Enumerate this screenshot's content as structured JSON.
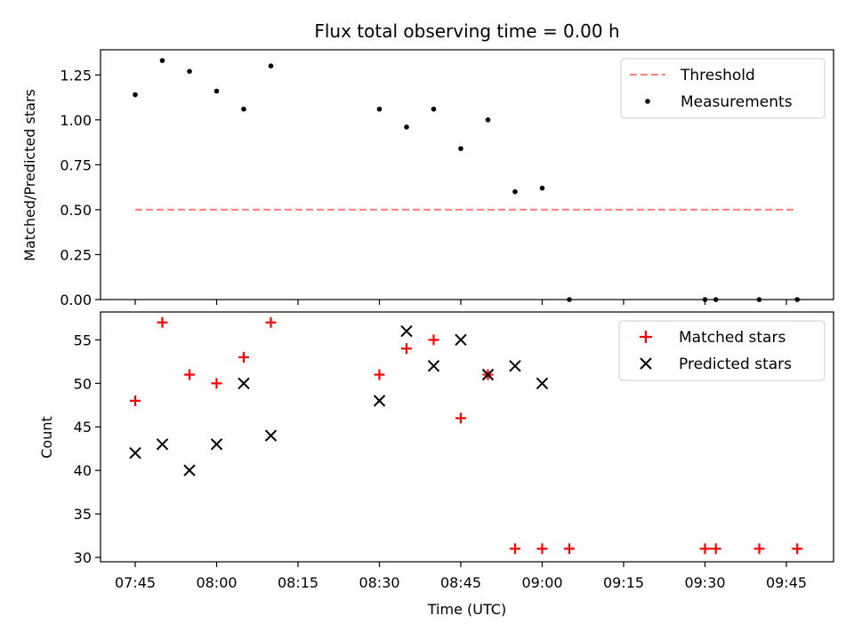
{
  "chart_data": [
    {
      "type": "scatter",
      "title": "Flux total observing time = 0.00 h",
      "xlabel": "",
      "ylabel": "Matched/Predicted stars",
      "ylim": [
        0,
        1.39
      ],
      "yticks": [
        0.0,
        0.25,
        0.5,
        0.75,
        1.0,
        1.25
      ],
      "ytick_labels": [
        "0.00",
        "0.25",
        "0.50",
        "0.75",
        "1.00",
        "1.25"
      ],
      "legend_position": "top-right",
      "legend": [
        {
          "label": "Threshold",
          "style": "dashed-line",
          "color": "#ff7f7f"
        },
        {
          "label": "Measurements",
          "style": "dot",
          "color": "#000000"
        }
      ],
      "threshold": {
        "value": 0.5,
        "x_start": "07:45",
        "x_end": "09:47"
      },
      "measurements": [
        {
          "x": "07:45",
          "y": 1.14
        },
        {
          "x": "07:50",
          "y": 1.33
        },
        {
          "x": "07:55",
          "y": 1.27
        },
        {
          "x": "08:00",
          "y": 1.16
        },
        {
          "x": "08:05",
          "y": 1.06
        },
        {
          "x": "08:10",
          "y": 1.3
        },
        {
          "x": "08:30",
          "y": 1.06
        },
        {
          "x": "08:35",
          "y": 0.96
        },
        {
          "x": "08:40",
          "y": 1.06
        },
        {
          "x": "08:45",
          "y": 0.84
        },
        {
          "x": "08:50",
          "y": 1.0
        },
        {
          "x": "08:55",
          "y": 0.6
        },
        {
          "x": "09:00",
          "y": 0.62
        },
        {
          "x": "09:05",
          "y": 0.0
        },
        {
          "x": "09:30",
          "y": 0.0
        },
        {
          "x": "09:32",
          "y": 0.0
        },
        {
          "x": "09:40",
          "y": 0.0
        },
        {
          "x": "09:47",
          "y": 0.0
        }
      ]
    },
    {
      "type": "scatter",
      "title": "",
      "xlabel": "Time (UTC)",
      "ylabel": "Count",
      "ylim": [
        29.5,
        58.2
      ],
      "yticks": [
        30,
        35,
        40,
        45,
        50,
        55
      ],
      "ytick_labels": [
        "30",
        "35",
        "40",
        "45",
        "50",
        "55"
      ],
      "xticks": [
        "07:45",
        "08:00",
        "08:15",
        "08:30",
        "08:45",
        "09:00",
        "09:15",
        "09:30",
        "09:45"
      ],
      "legend_position": "top-right",
      "series": [
        {
          "name": "Matched stars",
          "marker": "plus",
          "color": "#ff0000",
          "points": [
            {
              "x": "07:45",
              "y": 48
            },
            {
              "x": "07:50",
              "y": 57
            },
            {
              "x": "07:55",
              "y": 51
            },
            {
              "x": "08:00",
              "y": 50
            },
            {
              "x": "08:05",
              "y": 53
            },
            {
              "x": "08:10",
              "y": 57
            },
            {
              "x": "08:30",
              "y": 51
            },
            {
              "x": "08:35",
              "y": 54
            },
            {
              "x": "08:40",
              "y": 55
            },
            {
              "x": "08:45",
              "y": 46
            },
            {
              "x": "08:50",
              "y": 51
            },
            {
              "x": "08:55",
              "y": 31
            },
            {
              "x": "09:00",
              "y": 31
            },
            {
              "x": "09:05",
              "y": 31
            },
            {
              "x": "09:30",
              "y": 31
            },
            {
              "x": "09:32",
              "y": 31
            },
            {
              "x": "09:40",
              "y": 31
            },
            {
              "x": "09:47",
              "y": 31
            }
          ]
        },
        {
          "name": "Predicted stars",
          "marker": "x",
          "color": "#000000",
          "points": [
            {
              "x": "07:45",
              "y": 42
            },
            {
              "x": "07:50",
              "y": 43
            },
            {
              "x": "07:55",
              "y": 40
            },
            {
              "x": "08:00",
              "y": 43
            },
            {
              "x": "08:05",
              "y": 50
            },
            {
              "x": "08:10",
              "y": 44
            },
            {
              "x": "08:30",
              "y": 48
            },
            {
              "x": "08:35",
              "y": 56
            },
            {
              "x": "08:40",
              "y": 52
            },
            {
              "x": "08:45",
              "y": 55
            },
            {
              "x": "08:50",
              "y": 51
            },
            {
              "x": "08:55",
              "y": 52
            },
            {
              "x": "09:00",
              "y": 50
            }
          ]
        }
      ]
    }
  ]
}
